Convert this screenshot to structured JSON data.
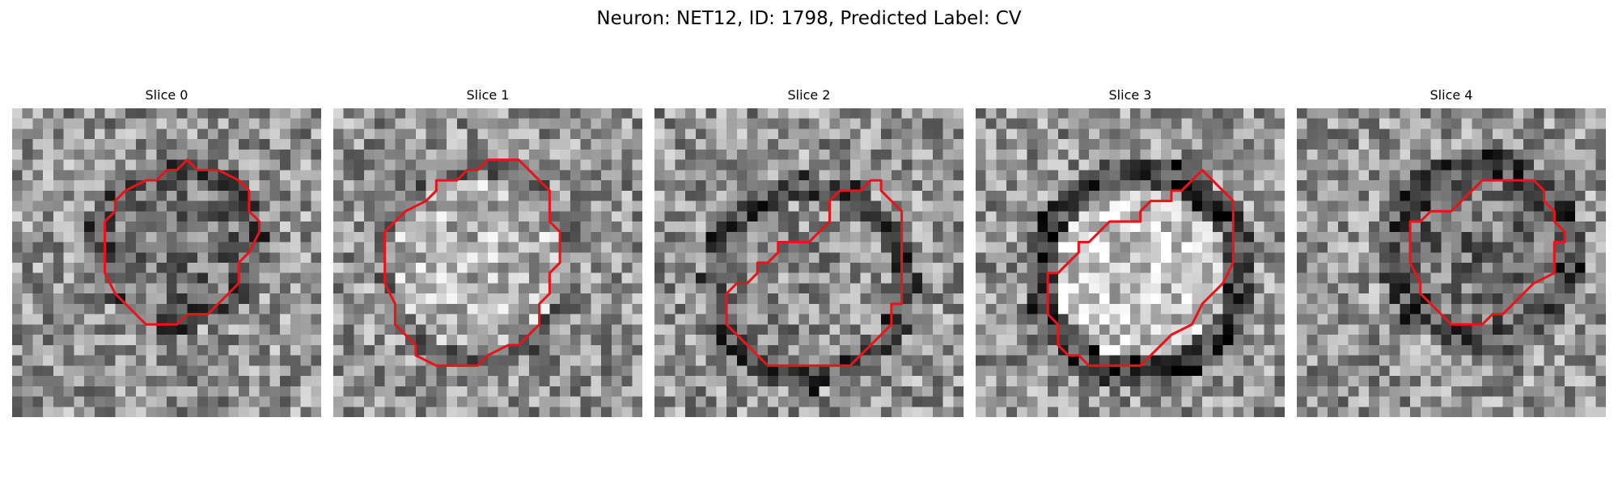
{
  "figure": {
    "title": "Neuron: NET12, ID: 1798, Predicted Label: CV"
  },
  "slices": [
    {
      "title": "Slice 0"
    },
    {
      "title": "Slice 1"
    },
    {
      "title": "Slice 2"
    },
    {
      "title": "Slice 3"
    },
    {
      "title": "Slice 4"
    }
  ],
  "colors": {
    "contour": "#e8141c",
    "background": "#ffffff"
  }
}
